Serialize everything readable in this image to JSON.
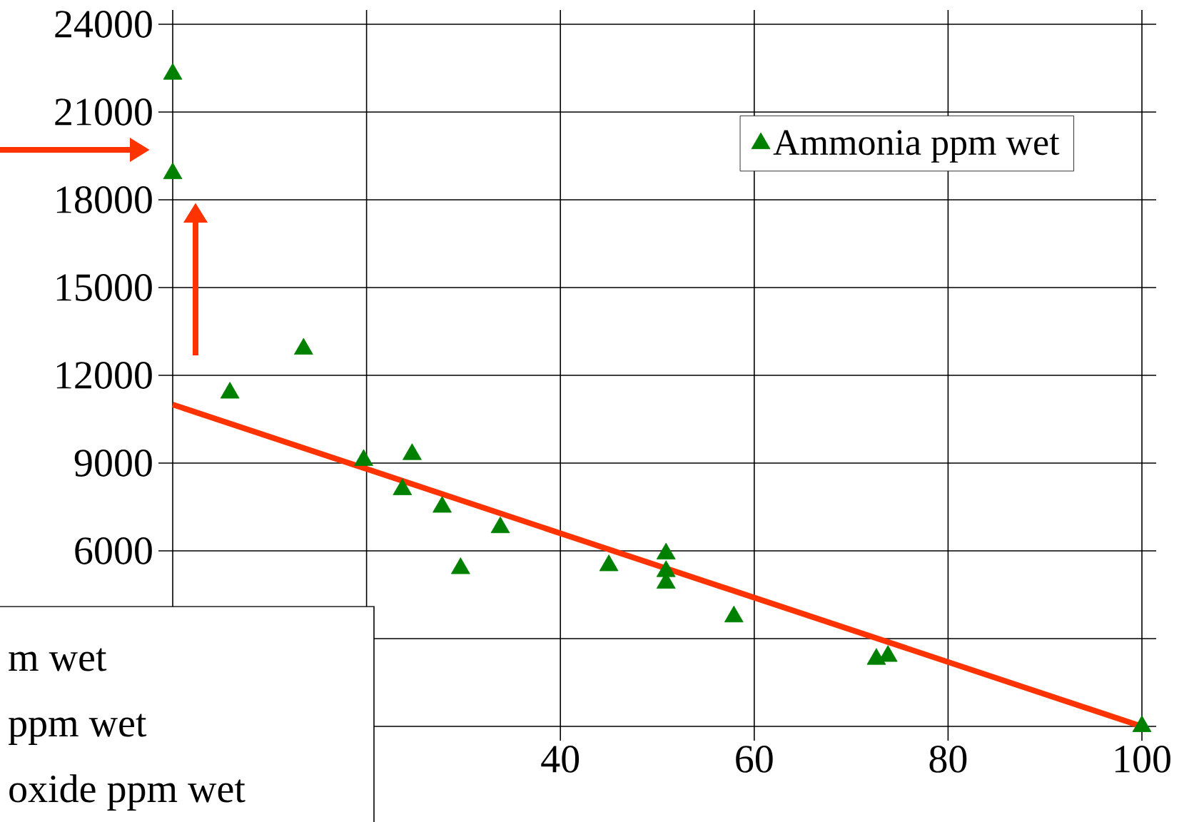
{
  "chart_data": {
    "type": "scatter",
    "xlim": [
      0,
      100
    ],
    "ylim": [
      0,
      24000
    ],
    "xticks": [
      {
        "value": 0,
        "label": null
      },
      {
        "value": 20,
        "label": null
      },
      40,
      60,
      80,
      100
    ],
    "yticks": [
      {
        "value": 0,
        "label": null
      },
      {
        "value": 3000,
        "label": null
      },
      6000,
      9000,
      12000,
      15000,
      18000,
      21000,
      24000
    ],
    "grid": true,
    "legend": "top right",
    "series": [
      {
        "name": "Ammonia ppm wet",
        "marker": "triangle",
        "color": "#008000",
        "x": [
          0,
          0,
          5.9,
          13.5,
          19.7,
          24.7,
          23.7,
          27.8,
          29.7,
          33.8,
          45.0,
          50.9,
          50.9,
          50.9,
          57.9,
          72.6,
          73.8,
          100
        ],
        "values": [
          22300,
          18900,
          11400,
          12900,
          9100,
          9300,
          8100,
          7500,
          5400,
          6800,
          5500,
          5900,
          5300,
          4900,
          3750,
          2300,
          2400,
          0
        ]
      },
      {
        "type": "line",
        "color": "#ff3300",
        "x": [
          0,
          100
        ],
        "values": [
          11000,
          0
        ]
      }
    ],
    "annotations": [
      "m wet",
      "ppm wet",
      "oxide ppm wet"
    ]
  }
}
